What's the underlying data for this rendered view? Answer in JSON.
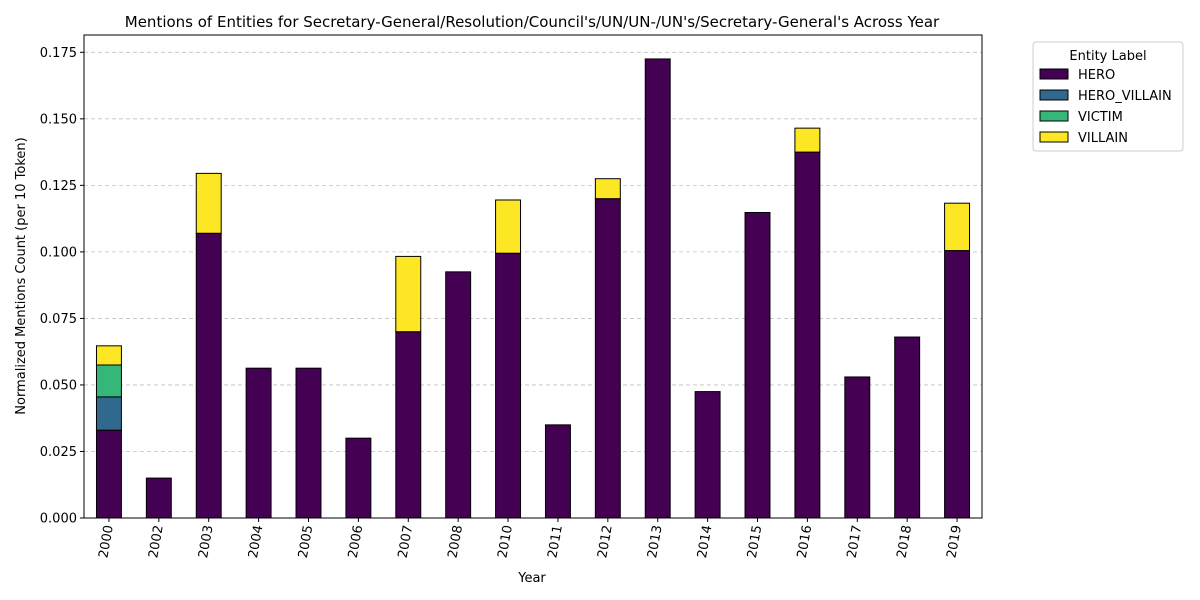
{
  "chart_data": {
    "type": "bar",
    "stacked": true,
    "title": "Mentions of Entities for Secretary-General/Resolution/Council's/UN/UN-/UN's/Secretary-General's Across Year",
    "xlabel": "Year",
    "ylabel": "Normalized Mentions Count (per 10 Token)",
    "categories": [
      "2000",
      "2002",
      "2003",
      "2004",
      "2005",
      "2006",
      "2007",
      "2008",
      "2010",
      "2011",
      "2012",
      "2013",
      "2014",
      "2015",
      "2016",
      "2017",
      "2018",
      "2019"
    ],
    "ylim": [
      0,
      0.1815
    ],
    "yticks": [
      "0.000",
      "0.025",
      "0.050",
      "0.075",
      "0.100",
      "0.125",
      "0.150",
      "0.175"
    ],
    "grid": "y",
    "legend": {
      "title": "Entity Label",
      "placement": "outside-top-right"
    },
    "series": [
      {
        "name": "HERO",
        "color": "#440154",
        "values": [
          0.033,
          0.015,
          0.107,
          0.0563,
          0.0563,
          0.03,
          0.07,
          0.0925,
          0.0995,
          0.035,
          0.12,
          0.1725,
          0.0475,
          0.1148,
          0.1375,
          0.053,
          0.068,
          0.1005
        ]
      },
      {
        "name": "HERO_VILLAIN",
        "color": "#31688e",
        "values": [
          0.0125,
          0,
          0,
          0,
          0,
          0,
          0,
          0,
          0,
          0,
          0,
          0,
          0,
          0,
          0,
          0,
          0,
          0
        ]
      },
      {
        "name": "VICTIM",
        "color": "#35b779",
        "values": [
          0.012,
          0,
          0,
          0,
          0,
          0,
          0,
          0,
          0,
          0,
          0,
          0,
          0,
          0,
          0,
          0,
          0,
          0
        ]
      },
      {
        "name": "VILLAIN",
        "color": "#fde725",
        "values": [
          0.0072,
          0,
          0.0225,
          0,
          0,
          0,
          0.0283,
          0,
          0.02,
          0,
          0.0075,
          0,
          0,
          0,
          0.009,
          0,
          0,
          0.0178
        ]
      }
    ]
  }
}
